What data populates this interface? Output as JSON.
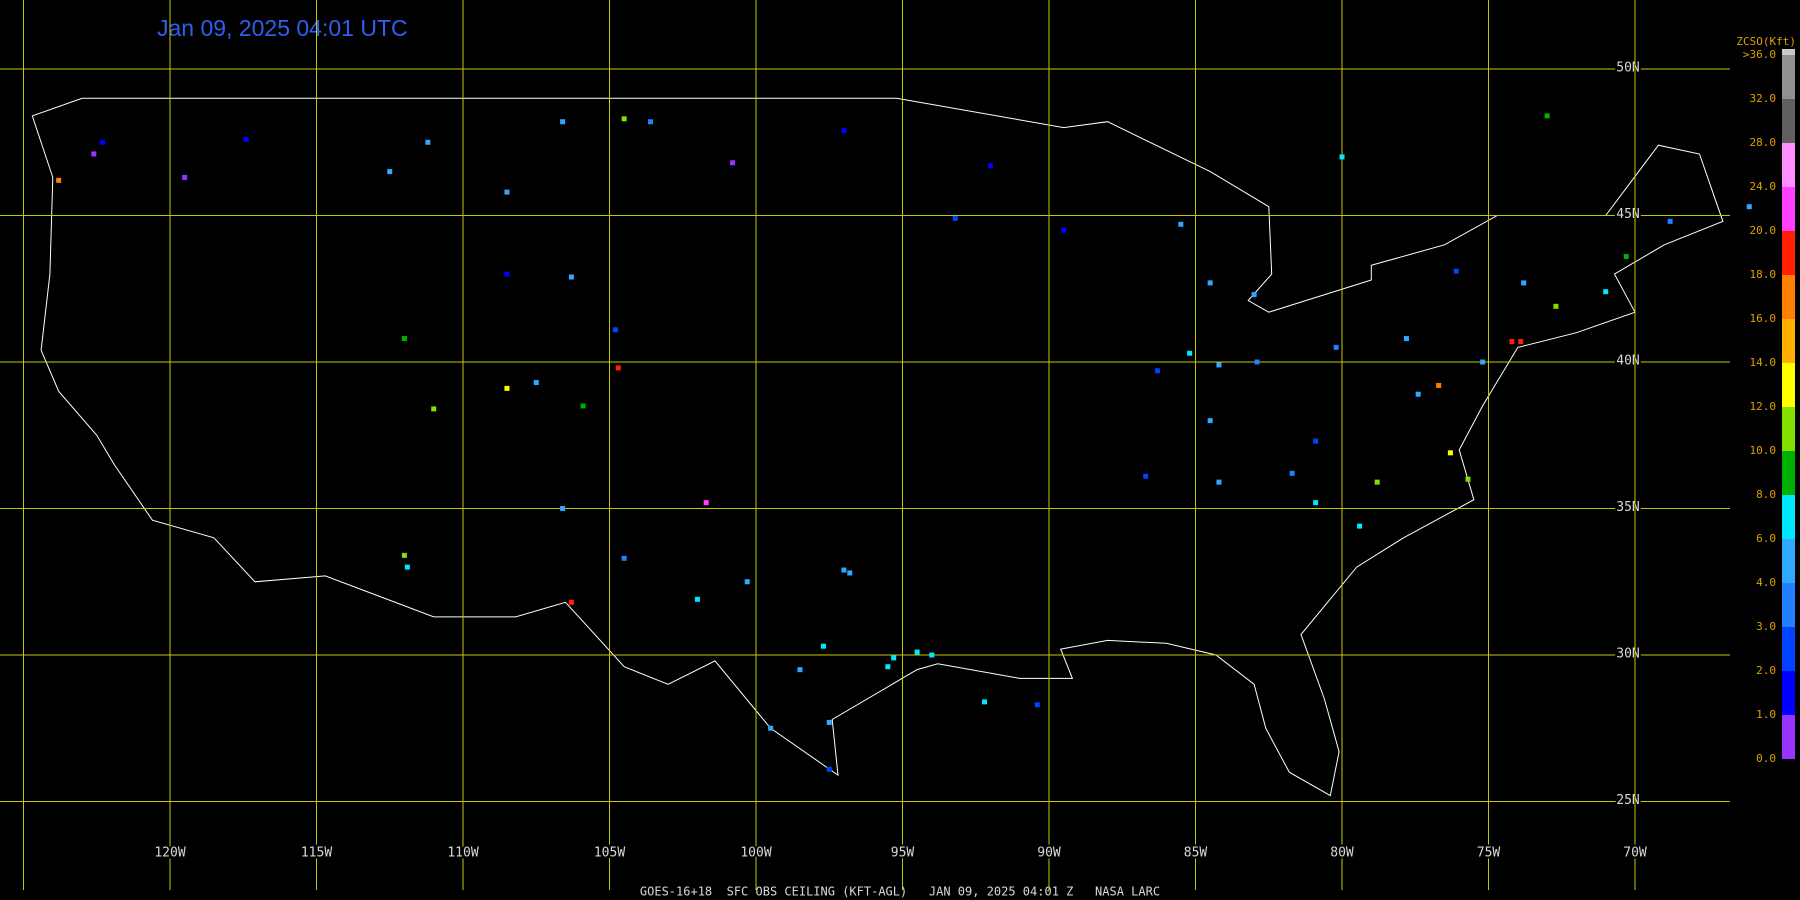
{
  "header": {
    "title": "Jan 09, 2025 04:01 UTC"
  },
  "map": {
    "grid_color": "#c8c800",
    "outline_color": "#ffffff",
    "lat_lines": [
      {
        "value": 50,
        "label": "50N"
      },
      {
        "value": 45,
        "label": "45N"
      },
      {
        "value": 40,
        "label": "40N"
      },
      {
        "value": 35,
        "label": "35N"
      },
      {
        "value": 30,
        "label": "30N"
      },
      {
        "value": 25,
        "label": "25N"
      }
    ],
    "lon_lines": [
      {
        "value": -125,
        "label": null
      },
      {
        "value": -120,
        "label": "120W"
      },
      {
        "value": -115,
        "label": "115W"
      },
      {
        "value": -110,
        "label": "110W"
      },
      {
        "value": -105,
        "label": "105W"
      },
      {
        "value": -100,
        "label": "100W"
      },
      {
        "value": -95,
        "label": "95W"
      },
      {
        "value": -90,
        "label": "90W"
      },
      {
        "value": -85,
        "label": "85W"
      },
      {
        "value": -80,
        "label": "80W"
      },
      {
        "value": -75,
        "label": "75W"
      },
      {
        "value": -70,
        "label": "70W"
      }
    ],
    "stations": [
      {
        "lon": -122.3,
        "lat": 47.5,
        "value": 1.5
      },
      {
        "lon": -122.6,
        "lat": 47.1,
        "value": 0.5
      },
      {
        "lon": -123.8,
        "lat": 46.2,
        "value": 16.5
      },
      {
        "lon": -117.4,
        "lat": 47.6,
        "value": 1.5
      },
      {
        "lon": -119.5,
        "lat": 46.3,
        "value": 0.5
      },
      {
        "lon": -111.2,
        "lat": 47.5,
        "value": 4.5
      },
      {
        "lon": -108.5,
        "lat": 45.8,
        "value": 4.5
      },
      {
        "lon": -112.5,
        "lat": 46.5,
        "value": 5
      },
      {
        "lon": -106.6,
        "lat": 48.2,
        "value": 4.5
      },
      {
        "lon": -104.5,
        "lat": 48.3,
        "value": 10.5
      },
      {
        "lon": -100.8,
        "lat": 46.8,
        "value": 0.5
      },
      {
        "lon": -97,
        "lat": 47.9,
        "value": 1.5
      },
      {
        "lon": -103.6,
        "lat": 48.2,
        "value": 3.5
      },
      {
        "lon": -106.3,
        "lat": 42.9,
        "value": 5
      },
      {
        "lon": -104.8,
        "lat": 41.1,
        "value": 2.5
      },
      {
        "lon": -108.5,
        "lat": 43.0,
        "value": 1
      },
      {
        "lon": -104.7,
        "lat": 39.8,
        "value": 18.5
      },
      {
        "lon": -107.5,
        "lat": 39.3,
        "value": 5.5
      },
      {
        "lon": -105.9,
        "lat": 38.5,
        "value": 8.5
      },
      {
        "lon": -108.5,
        "lat": 39.1,
        "value": 12.5
      },
      {
        "lon": -112,
        "lat": 40.8,
        "value": 8.5
      },
      {
        "lon": -111,
        "lat": 38.4,
        "value": 10.5
      },
      {
        "lon": -112,
        "lat": 33.4,
        "value": 10.5
      },
      {
        "lon": -111.9,
        "lat": 33.0,
        "value": 7
      },
      {
        "lon": -106.6,
        "lat": 35.0,
        "value": 5
      },
      {
        "lon": -104.5,
        "lat": 33.3,
        "value": 3
      },
      {
        "lon": -106.3,
        "lat": 31.8,
        "value": 19
      },
      {
        "lon": -97,
        "lat": 32.9,
        "value": 5
      },
      {
        "lon": -96.8,
        "lat": 32.8,
        "value": 4.5
      },
      {
        "lon": -98.5,
        "lat": 29.5,
        "value": 5
      },
      {
        "lon": -95.3,
        "lat": 29.9,
        "value": 6.5
      },
      {
        "lon": -95.5,
        "lat": 29.6,
        "value": 7
      },
      {
        "lon": -94.5,
        "lat": 30.1,
        "value": 7
      },
      {
        "lon": -97.7,
        "lat": 30.3,
        "value": 6
      },
      {
        "lon": -97.5,
        "lat": 27.7,
        "value": 4
      },
      {
        "lon": -97.5,
        "lat": 26.1,
        "value": 2
      },
      {
        "lon": -101.7,
        "lat": 35.2,
        "value": 20
      },
      {
        "lon": -100.3,
        "lat": 32.5,
        "value": 4.5
      },
      {
        "lon": -102,
        "lat": 31.9,
        "value": 6.5
      },
      {
        "lon": -99.5,
        "lat": 27.5,
        "value": 5
      },
      {
        "lon": -94,
        "lat": 30,
        "value": 7.5
      },
      {
        "lon": -92.2,
        "lat": 28.4,
        "value": 7.5
      },
      {
        "lon": -90.4,
        "lat": 28.3,
        "value": 2.5
      },
      {
        "lon": -93.2,
        "lat": 44.9,
        "value": 2
      },
      {
        "lon": -92,
        "lat": 46.7,
        "value": 1.5
      },
      {
        "lon": -89.5,
        "lat": 44.5,
        "value": 1.5
      },
      {
        "lon": -84.5,
        "lat": 42.7,
        "value": 5
      },
      {
        "lon": -83,
        "lat": 42.3,
        "value": 5
      },
      {
        "lon": -85.5,
        "lat": 44.7,
        "value": 4.5
      },
      {
        "lon": -84.2,
        "lat": 39.9,
        "value": 4.5
      },
      {
        "lon": -82.9,
        "lat": 40,
        "value": 3
      },
      {
        "lon": -86.3,
        "lat": 39.7,
        "value": 2.5
      },
      {
        "lon": -85.2,
        "lat": 40.3,
        "value": 7
      },
      {
        "lon": -80.2,
        "lat": 40.5,
        "value": 3
      },
      {
        "lon": -77.8,
        "lat": 40.8,
        "value": 5
      },
      {
        "lon": -75.2,
        "lat": 40,
        "value": 4.5
      },
      {
        "lon": -76.1,
        "lat": 43.1,
        "value": 2
      },
      {
        "lon": -73.8,
        "lat": 42.7,
        "value": 5
      },
      {
        "lon": -73.9,
        "lat": 40.7,
        "value": 18
      },
      {
        "lon": -74.2,
        "lat": 40.7,
        "value": 18
      },
      {
        "lon": -71,
        "lat": 42.4,
        "value": 7
      },
      {
        "lon": -70.3,
        "lat": 43.6,
        "value": 8.5
      },
      {
        "lon": -72.7,
        "lat": 41.9,
        "value": 10
      },
      {
        "lon": -68.8,
        "lat": 44.8,
        "value": 3
      },
      {
        "lon": -77.4,
        "lat": 38.9,
        "value": 4.5
      },
      {
        "lon": -76.7,
        "lat": 39.2,
        "value": 16.5
      },
      {
        "lon": -76.3,
        "lat": 36.9,
        "value": 13
      },
      {
        "lon": -75.7,
        "lat": 36.0,
        "value": 11
      },
      {
        "lon": -78.8,
        "lat": 35.9,
        "value": 11
      },
      {
        "lon": -80.9,
        "lat": 35.2,
        "value": 7.5
      },
      {
        "lon": -79.4,
        "lat": 34.4,
        "value": 7
      },
      {
        "lon": -81.7,
        "lat": 36.2,
        "value": 3
      },
      {
        "lon": -80.9,
        "lat": 37.3,
        "value": 2.5
      },
      {
        "lon": -84.5,
        "lat": 38.0,
        "value": 5
      },
      {
        "lon": -86.7,
        "lat": 36.1,
        "value": 2
      },
      {
        "lon": -84.2,
        "lat": 35.9,
        "value": 4.5
      },
      {
        "lon": -80,
        "lat": 47,
        "value": 7
      },
      {
        "lon": -73,
        "lat": 48.4,
        "value": 8
      },
      {
        "lon": -66.1,
        "lat": 45.3,
        "value": 5.5
      }
    ]
  },
  "legend": {
    "title": "ZCSO(Kft)",
    "ticks": [
      {
        "value": 0,
        "label": "0.0"
      },
      {
        "value": 1,
        "label": "1.0"
      },
      {
        "value": 2,
        "label": "2.0"
      },
      {
        "value": 3,
        "label": "3.0"
      },
      {
        "value": 4,
        "label": "4.0"
      },
      {
        "value": 6,
        "label": "6.0"
      },
      {
        "value": 8,
        "label": "8.0"
      },
      {
        "value": 10,
        "label": "10.0"
      },
      {
        "value": 12,
        "label": "12.0"
      },
      {
        "value": 14,
        "label": "14.0"
      },
      {
        "value": 16,
        "label": "16.0"
      },
      {
        "value": 18,
        "label": "18.0"
      },
      {
        "value": 20,
        "label": "20.0"
      },
      {
        "value": 24,
        "label": "24.0"
      },
      {
        "value": 28,
        "label": "28.0"
      },
      {
        "value": 32,
        "label": "32.0"
      },
      {
        "value": 36,
        "label": ">36.0"
      }
    ],
    "colors": [
      "#9933ff",
      "#0000ff",
      "#0044ff",
      "#2080ff",
      "#30a8ff",
      "#00e8ff",
      "#00b000",
      "#80e000",
      "#ffff00",
      "#ffb000",
      "#ff8000",
      "#ff2000",
      "#ff40ff",
      "#ff90ff",
      "#606060",
      "#909090",
      "#c8c8c8"
    ]
  },
  "footer": "GOES-16+18  SFC OBS CEILING (KFT-AGL)   JAN 09, 2025 04:01 Z   NASA LARC"
}
